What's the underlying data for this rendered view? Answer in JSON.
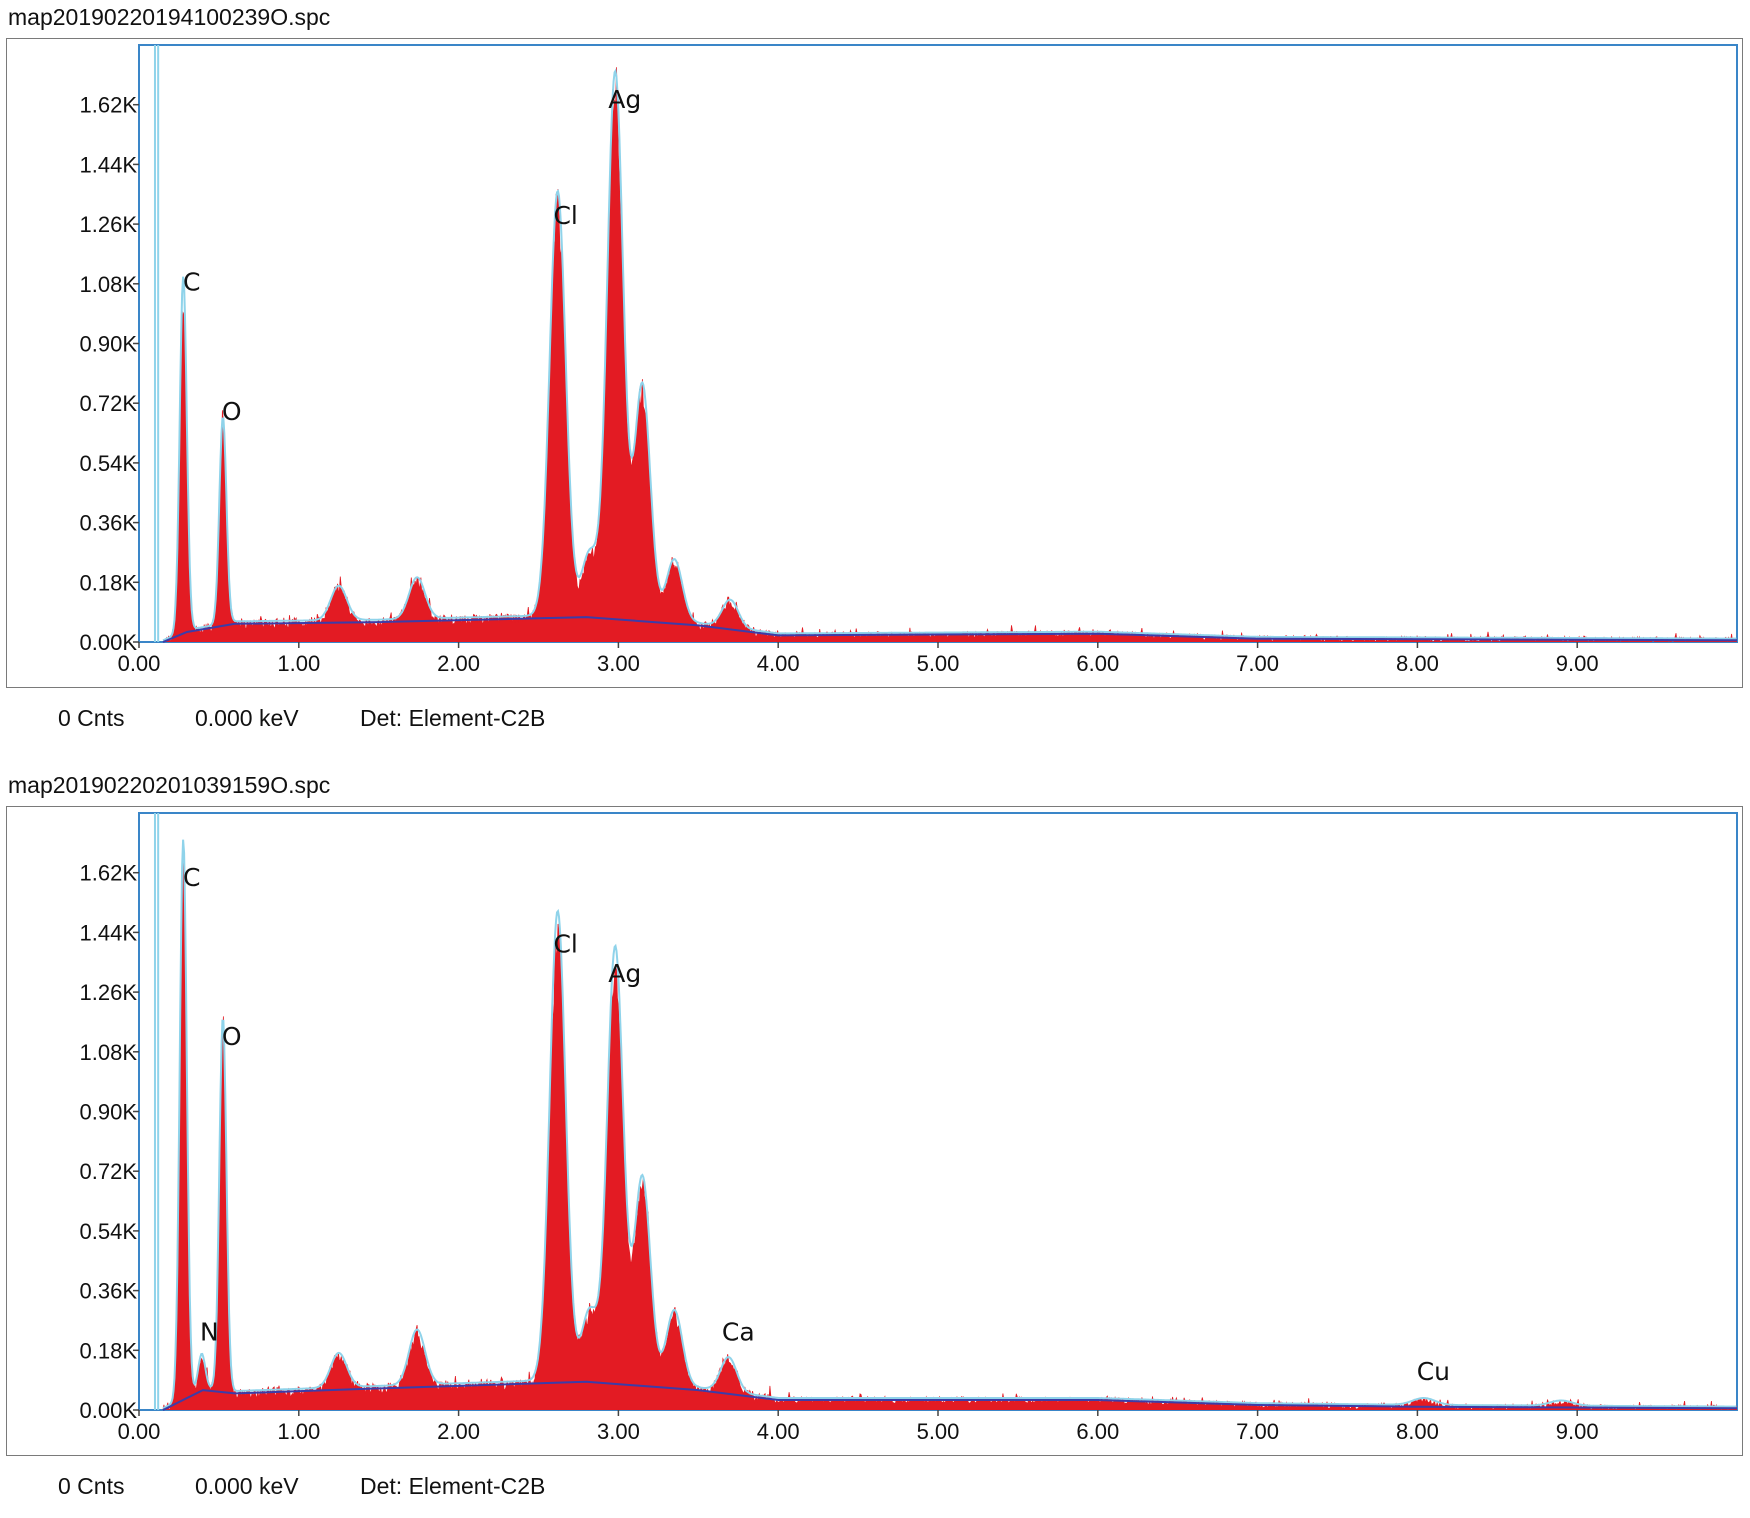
{
  "panels": [
    {
      "title": "map20190220194100239O.spc",
      "status": {
        "counts": "0 Cnts",
        "energy": "0.000 keV",
        "detector": "Det: Element-C2B"
      },
      "chart_data": {
        "type": "area",
        "xlabel": "",
        "ylabel": "",
        "xlim": [
          0,
          10
        ],
        "ylim": [
          0,
          1.8
        ],
        "x_ticks": [
          0,
          1,
          2,
          3,
          4,
          5,
          6,
          7,
          8,
          9
        ],
        "x_tick_labels": [
          "0.00",
          "1.00",
          "2.00",
          "3.00",
          "4.00",
          "5.00",
          "6.00",
          "7.00",
          "8.00",
          "9.00"
        ],
        "y_ticks": [
          0,
          0.18,
          0.36,
          0.54,
          0.72,
          0.9,
          1.08,
          1.26,
          1.44,
          1.62
        ],
        "y_tick_labels": [
          "0.00K",
          "0.18K",
          "0.36K",
          "0.54K",
          "0.72K",
          "0.90K",
          "1.08K",
          "1.26K",
          "1.44K",
          "1.62K"
        ],
        "baseline": {
          "energy_start": 0.15,
          "level": 0.02,
          "mid": 0.06,
          "points": [
            [
              0.15,
              0.0
            ],
            [
              0.3,
              0.03
            ],
            [
              0.6,
              0.055
            ],
            [
              1.5,
              0.06
            ],
            [
              2.8,
              0.075
            ],
            [
              3.5,
              0.05
            ],
            [
              4.0,
              0.02
            ],
            [
              6.0,
              0.025
            ],
            [
              7.0,
              0.01
            ],
            [
              10,
              0.005
            ]
          ]
        },
        "peaks": [
          {
            "label": "C",
            "energy": 0.277,
            "counts": 1.03
          },
          {
            "label": "O",
            "energy": 0.525,
            "counts": 0.6
          },
          {
            "label": "Cl",
            "energy": 2.62,
            "counts": 1.23
          },
          {
            "label": "Ag",
            "energy": 2.98,
            "counts": 1.58
          },
          {
            "label": "",
            "energy": 3.15,
            "counts": 0.68
          },
          {
            "label": "",
            "energy": 3.35,
            "counts": 0.18
          },
          {
            "label": "",
            "energy": 1.74,
            "counts": 0.12
          },
          {
            "label": "",
            "energy": 1.25,
            "counts": 0.1
          },
          {
            "label": "",
            "energy": 2.82,
            "counts": 0.18
          },
          {
            "label": "",
            "energy": 3.7,
            "counts": 0.08
          }
        ],
        "peak_labels": [
          {
            "text": "C",
            "energy": 0.33,
            "counts": 1.06
          },
          {
            "text": "O",
            "energy": 0.58,
            "counts": 0.67
          },
          {
            "text": "Cl",
            "energy": 2.67,
            "counts": 1.26
          },
          {
            "text": "Ag",
            "energy": 3.04,
            "counts": 1.61
          }
        ],
        "colors": {
          "fill": "#e31b23",
          "fit": "#8fd3ea",
          "background": "#3c3ca8",
          "frame": "#3a86c8"
        }
      }
    },
    {
      "title": "map20190220201039159O.spc",
      "status": {
        "counts": "0 Cnts",
        "energy": "0.000 keV",
        "detector": "Det: Element-C2B"
      },
      "chart_data": {
        "type": "area",
        "xlabel": "",
        "ylabel": "",
        "xlim": [
          0,
          10
        ],
        "ylim": [
          0,
          1.8
        ],
        "x_ticks": [
          0,
          1,
          2,
          3,
          4,
          5,
          6,
          7,
          8,
          9
        ],
        "x_tick_labels": [
          "0.00",
          "1.00",
          "2.00",
          "3.00",
          "4.00",
          "5.00",
          "6.00",
          "7.00",
          "8.00",
          "9.00"
        ],
        "y_ticks": [
          0,
          0.18,
          0.36,
          0.54,
          0.72,
          0.9,
          1.08,
          1.26,
          1.44,
          1.62
        ],
        "y_tick_labels": [
          "0.00K",
          "0.18K",
          "0.36K",
          "0.54K",
          "0.72K",
          "0.90K",
          "1.08K",
          "1.26K",
          "1.44K",
          "1.62K"
        ],
        "baseline": {
          "energy_start": 0.15,
          "level": 0.02,
          "mid": 0.06,
          "points": [
            [
              0.15,
              0.0
            ],
            [
              0.4,
              0.06
            ],
            [
              0.6,
              0.05
            ],
            [
              1.5,
              0.065
            ],
            [
              2.8,
              0.085
            ],
            [
              3.5,
              0.06
            ],
            [
              4.0,
              0.03
            ],
            [
              6.0,
              0.03
            ],
            [
              7.0,
              0.015
            ],
            [
              8.0,
              0.01
            ],
            [
              10,
              0.005
            ]
          ]
        },
        "peaks": [
          {
            "label": "C",
            "energy": 0.277,
            "counts": 1.62
          },
          {
            "label": "O",
            "energy": 0.525,
            "counts": 1.08
          },
          {
            "label": "N",
            "energy": 0.392,
            "counts": 0.1
          },
          {
            "label": "Cl",
            "energy": 2.62,
            "counts": 1.36
          },
          {
            "label": "Ag",
            "energy": 2.98,
            "counts": 1.26
          },
          {
            "label": "",
            "energy": 3.15,
            "counts": 0.6
          },
          {
            "label": "",
            "energy": 3.35,
            "counts": 0.22
          },
          {
            "label": "",
            "energy": 1.74,
            "counts": 0.16
          },
          {
            "label": "",
            "energy": 1.25,
            "counts": 0.1
          },
          {
            "label": "",
            "energy": 2.82,
            "counts": 0.2
          },
          {
            "label": "Ca",
            "energy": 3.69,
            "counts": 0.1
          },
          {
            "label": "Cu",
            "energy": 8.04,
            "counts": 0.02
          },
          {
            "label": "",
            "energy": 8.9,
            "counts": 0.015
          }
        ],
        "peak_labels": [
          {
            "text": "C",
            "energy": 0.33,
            "counts": 1.58
          },
          {
            "text": "O",
            "energy": 0.58,
            "counts": 1.1
          },
          {
            "text": "N",
            "energy": 0.44,
            "counts": 0.21
          },
          {
            "text": "Cl",
            "energy": 2.67,
            "counts": 1.38
          },
          {
            "text": "Ag",
            "energy": 3.04,
            "counts": 1.29
          },
          {
            "text": "Ca",
            "energy": 3.75,
            "counts": 0.21
          },
          {
            "text": "Cu",
            "energy": 8.1,
            "counts": 0.09
          }
        ],
        "colors": {
          "fill": "#e31b23",
          "fit": "#8fd3ea",
          "background": "#3c3ca8",
          "frame": "#3a86c8"
        }
      }
    }
  ]
}
